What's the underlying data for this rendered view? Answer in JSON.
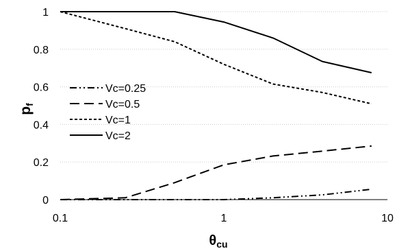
{
  "chart_data": {
    "type": "line",
    "xscale": "log",
    "xlim": [
      0.1,
      10
    ],
    "ylim": [
      0,
      1
    ],
    "x_ticks": [
      0.1,
      1,
      10
    ],
    "x_tick_labels": [
      "0.1",
      "1",
      "10"
    ],
    "y_ticks": [
      0,
      0.2,
      0.4,
      0.6,
      0.8,
      1
    ],
    "y_tick_labels": [
      "0",
      "0.2",
      "0.4",
      "0.6",
      "0.8",
      "1"
    ],
    "grid": "horizontal dotted",
    "xlabel": {
      "main": "θ",
      "sub": "cu"
    },
    "ylabel": {
      "main": "p",
      "sub": "f"
    },
    "legend": {
      "placement": "center-left"
    },
    "series": [
      {
        "name": "Vc=0.25",
        "style": "dash-dot-dot",
        "color": "#000000",
        "points": [
          [
            0.1,
            0
          ],
          [
            0.25,
            0
          ],
          [
            0.5,
            0
          ],
          [
            1,
            0
          ],
          [
            2,
            0.01
          ],
          [
            4,
            0.025
          ],
          [
            8,
            0.055
          ]
        ]
      },
      {
        "name": "Vc=0.5",
        "style": "long-dash",
        "color": "#000000",
        "points": [
          [
            0.1,
            0
          ],
          [
            0.25,
            0.01
          ],
          [
            0.5,
            0.09
          ],
          [
            1,
            0.185
          ],
          [
            2,
            0.232
          ],
          [
            4,
            0.258
          ],
          [
            8,
            0.285
          ]
        ]
      },
      {
        "name": "Vc=1",
        "style": "short-dash",
        "color": "#000000",
        "points": [
          [
            0.1,
            1
          ],
          [
            0.25,
            0.91
          ],
          [
            0.5,
            0.84
          ],
          [
            1,
            0.72
          ],
          [
            2,
            0.615
          ],
          [
            4,
            0.57
          ],
          [
            8,
            0.51
          ]
        ]
      },
      {
        "name": "Vc=2",
        "style": "solid",
        "color": "#000000",
        "points": [
          [
            0.1,
            1
          ],
          [
            0.25,
            1
          ],
          [
            0.5,
            1
          ],
          [
            1,
            0.945
          ],
          [
            2,
            0.86
          ],
          [
            4,
            0.735
          ],
          [
            8,
            0.675
          ]
        ]
      }
    ]
  }
}
